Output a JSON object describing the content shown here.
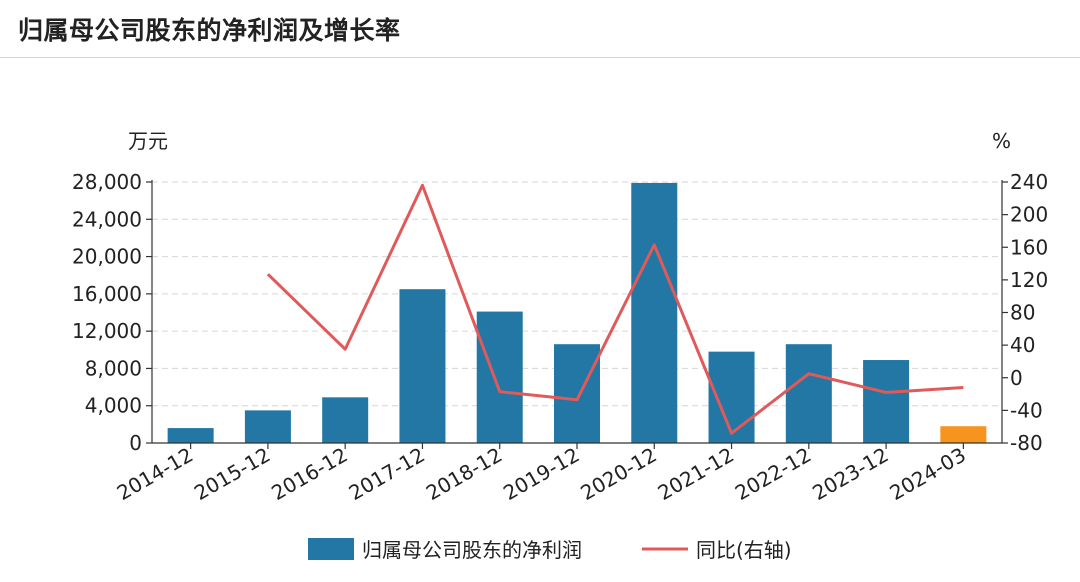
{
  "title": "归属母公司股东的净利润及增长率",
  "chart_data": {
    "type": "bar+line",
    "title": "归属母公司股东的净利润及增长率",
    "categories": [
      "2014-12",
      "2015-12",
      "2016-12",
      "2017-12",
      "2018-12",
      "2019-12",
      "2020-12",
      "2021-12",
      "2022-12",
      "2023-12",
      "2024-03"
    ],
    "y_left": {
      "unit": "万元",
      "range": [
        0,
        28000
      ],
      "ticks": [
        0,
        4000,
        8000,
        12000,
        16000,
        20000,
        24000,
        28000
      ],
      "tick_labels": [
        "0",
        "4,000",
        "8,000",
        "12,000",
        "16,000",
        "20,000",
        "24,000",
        "28,000"
      ]
    },
    "y_right": {
      "unit": "%",
      "range": [
        -80,
        240
      ],
      "ticks": [
        -80,
        -40,
        0,
        40,
        80,
        120,
        160,
        200,
        240
      ],
      "tick_labels": [
        "-80",
        "-40",
        "0",
        "40",
        "80",
        "120",
        "160",
        "200",
        "240"
      ]
    },
    "series": [
      {
        "name": "归属母公司股东的净利润",
        "type": "bar",
        "axis": "left",
        "color": "#2277a4",
        "highlight_color": "#f7941d",
        "highlight_index": 10,
        "values": [
          1600,
          3500,
          4900,
          16500,
          14100,
          10600,
          27900,
          9800,
          10600,
          8900,
          1800
        ]
      },
      {
        "name": "同比(右轴)",
        "type": "line",
        "axis": "right",
        "color": "#e05a5a",
        "values": [
          null,
          127,
          35,
          236,
          -17,
          -27,
          163,
          -68,
          5,
          -18,
          -12
        ]
      }
    ],
    "grid": true,
    "legend": "bottom"
  }
}
